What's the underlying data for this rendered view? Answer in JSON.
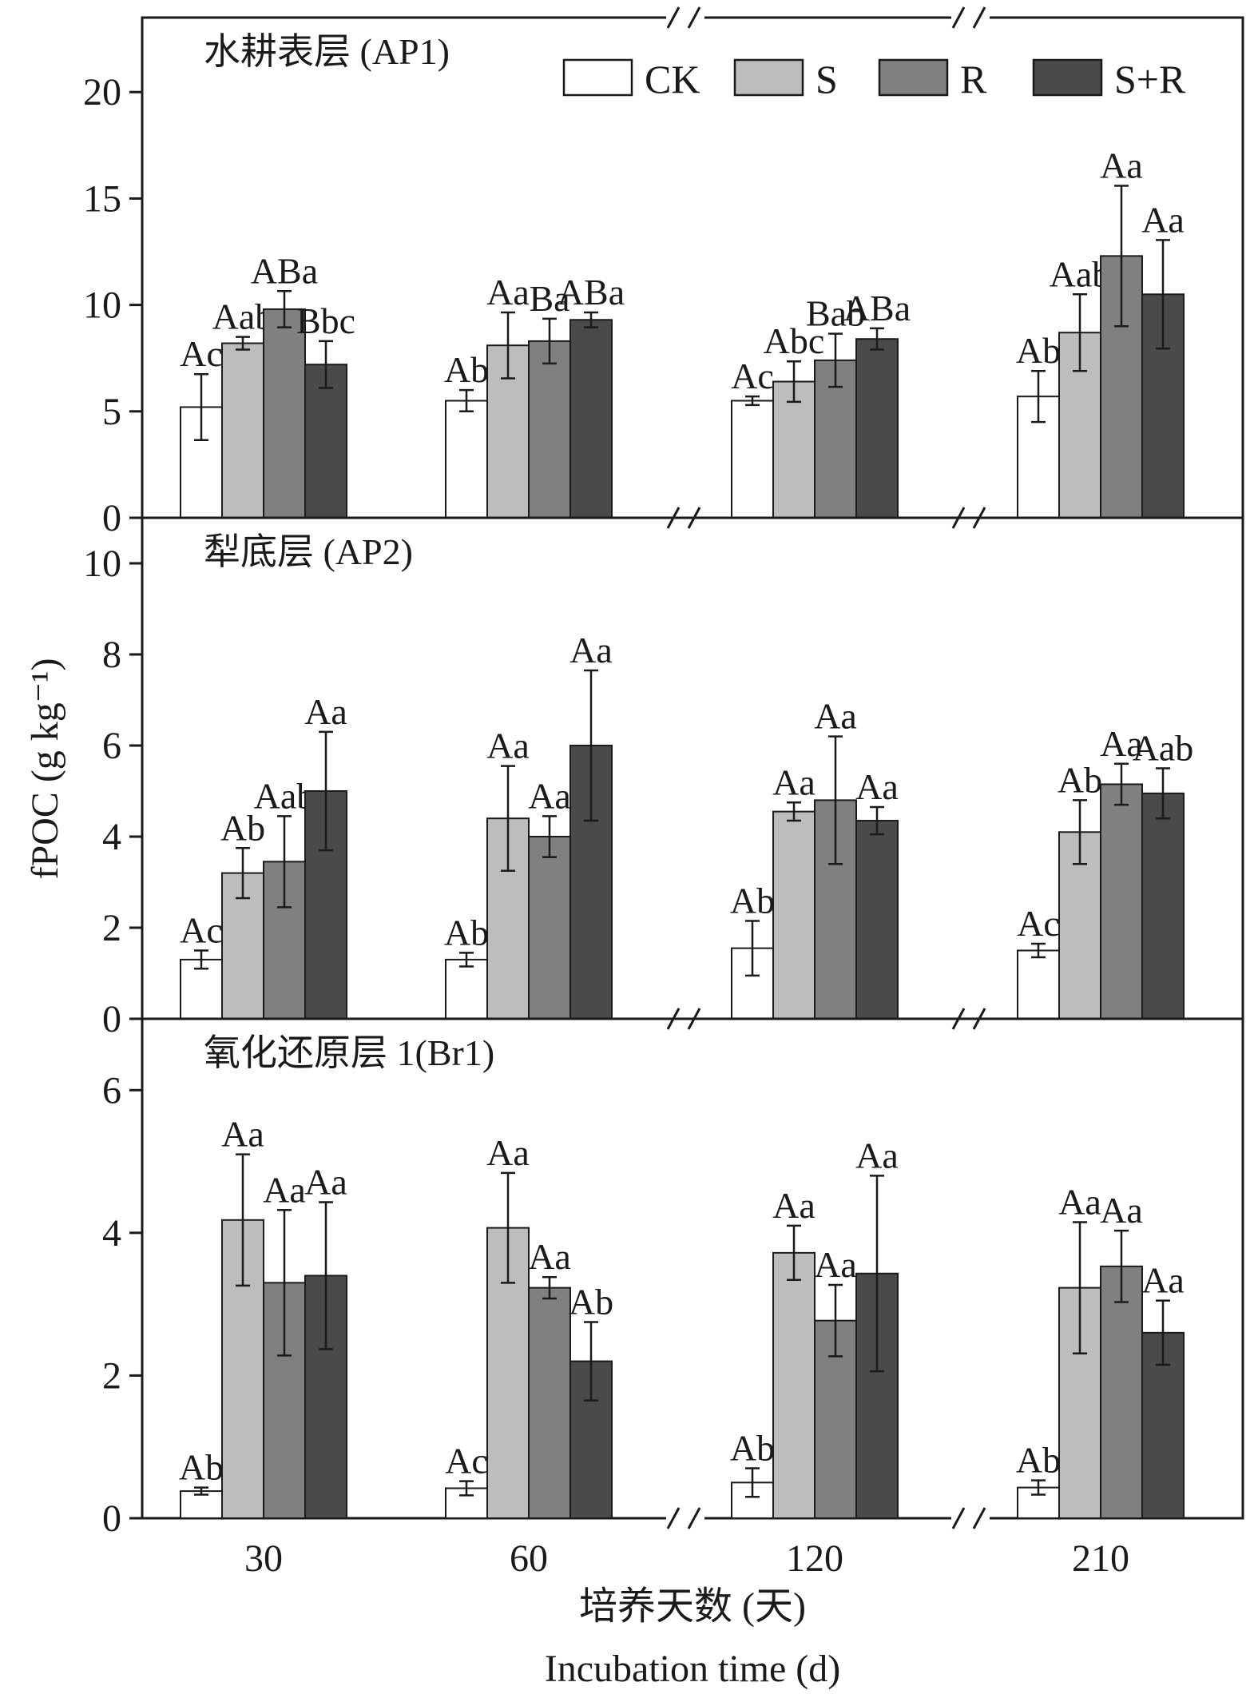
{
  "chart_data": {
    "type": "bar",
    "categories": [
      "30",
      "60",
      "120",
      "210"
    ],
    "legend": [
      "CK",
      "S",
      "R",
      "S+R"
    ],
    "colors": [
      "#ffffff",
      "#bdbdbd",
      "#808080",
      "#4a4a4a"
    ],
    "legend_position": "top-right",
    "grid": false,
    "xlabel_cn": "培养天数 (天)",
    "xlabel_en": "Incubation time (d)",
    "ylabel": "fPOC (g kg⁻¹)",
    "axis_break_marks": [
      "//",
      "//"
    ],
    "panels": [
      {
        "title": "水耕表层 (AP1)",
        "ylim": [
          0,
          23.5
        ],
        "yticks": [
          0,
          5,
          10,
          15,
          20
        ],
        "series": [
          {
            "name": "CK",
            "values": [
              5.2,
              5.5,
              5.5,
              5.7
            ],
            "errors": [
              1.55,
              0.5,
              0.2,
              1.2
            ],
            "labels": [
              "Ac",
              "Ab",
              "Ac",
              "Ab"
            ]
          },
          {
            "name": "S",
            "values": [
              8.2,
              8.1,
              6.4,
              8.7
            ],
            "errors": [
              0.3,
              1.55,
              0.95,
              1.8
            ],
            "labels": [
              "Aab",
              "Aa",
              "Abc",
              "Aab"
            ]
          },
          {
            "name": "R",
            "values": [
              9.8,
              8.3,
              7.4,
              12.3
            ],
            "errors": [
              0.85,
              1.05,
              1.25,
              3.3
            ],
            "labels": [
              "ABa",
              "Ba",
              "Bab",
              "Aa"
            ]
          },
          {
            "name": "S+R",
            "values": [
              7.2,
              9.3,
              8.4,
              10.5
            ],
            "errors": [
              1.1,
              0.35,
              0.5,
              2.55
            ],
            "labels": [
              "Bbc",
              "ABa",
              "ABa",
              "Aa"
            ]
          }
        ]
      },
      {
        "title": "犁底层 (AP2)",
        "ylim": [
          0,
          11
        ],
        "yticks": [
          0,
          2,
          4,
          6,
          8,
          10
        ],
        "series": [
          {
            "name": "CK",
            "values": [
              1.3,
              1.3,
              1.55,
              1.5
            ],
            "errors": [
              0.2,
              0.15,
              0.6,
              0.15
            ],
            "labels": [
              "Ac",
              "Ab",
              "Ab",
              "Ac"
            ]
          },
          {
            "name": "S",
            "values": [
              3.2,
              4.4,
              4.55,
              4.1
            ],
            "errors": [
              0.55,
              1.15,
              0.2,
              0.7
            ],
            "labels": [
              "Ab",
              "Aa",
              "Aa",
              "Ab"
            ]
          },
          {
            "name": "R",
            "values": [
              3.45,
              4.0,
              4.8,
              5.15
            ],
            "errors": [
              1.0,
              0.45,
              1.4,
              0.45
            ],
            "labels": [
              "Aab",
              "Aa",
              "Aa",
              "Aa"
            ]
          },
          {
            "name": "S+R",
            "values": [
              5.0,
              6.0,
              4.35,
              4.95
            ],
            "errors": [
              1.3,
              1.65,
              0.3,
              0.55
            ],
            "labels": [
              "Aa",
              "Aa",
              "Aa",
              "Aab"
            ]
          }
        ]
      },
      {
        "title": "氧化还原层 1(Br1)",
        "ylim": [
          0,
          7
        ],
        "yticks": [
          0,
          2,
          4,
          6
        ],
        "series": [
          {
            "name": "CK",
            "values": [
              0.38,
              0.42,
              0.5,
              0.43
            ],
            "errors": [
              0.05,
              0.1,
              0.2,
              0.1
            ],
            "labels": [
              "Ab",
              "Ac",
              "Ab",
              "Ab"
            ]
          },
          {
            "name": "S",
            "values": [
              4.18,
              4.07,
              3.72,
              3.23
            ],
            "errors": [
              0.92,
              0.77,
              0.38,
              0.92
            ],
            "labels": [
              "Aa",
              "Aa",
              "Aa",
              "Aa"
            ]
          },
          {
            "name": "R",
            "values": [
              3.3,
              3.23,
              2.77,
              3.53
            ],
            "errors": [
              1.02,
              0.15,
              0.5,
              0.5
            ],
            "labels": [
              "Aa",
              "Aa",
              "Aa",
              "Aa"
            ]
          },
          {
            "name": "S+R",
            "values": [
              3.4,
              2.2,
              3.43,
              2.6
            ],
            "errors": [
              1.03,
              0.55,
              1.37,
              0.45
            ],
            "labels": [
              "Aa",
              "Ab",
              "Aa",
              "Aa"
            ]
          }
        ]
      }
    ]
  }
}
